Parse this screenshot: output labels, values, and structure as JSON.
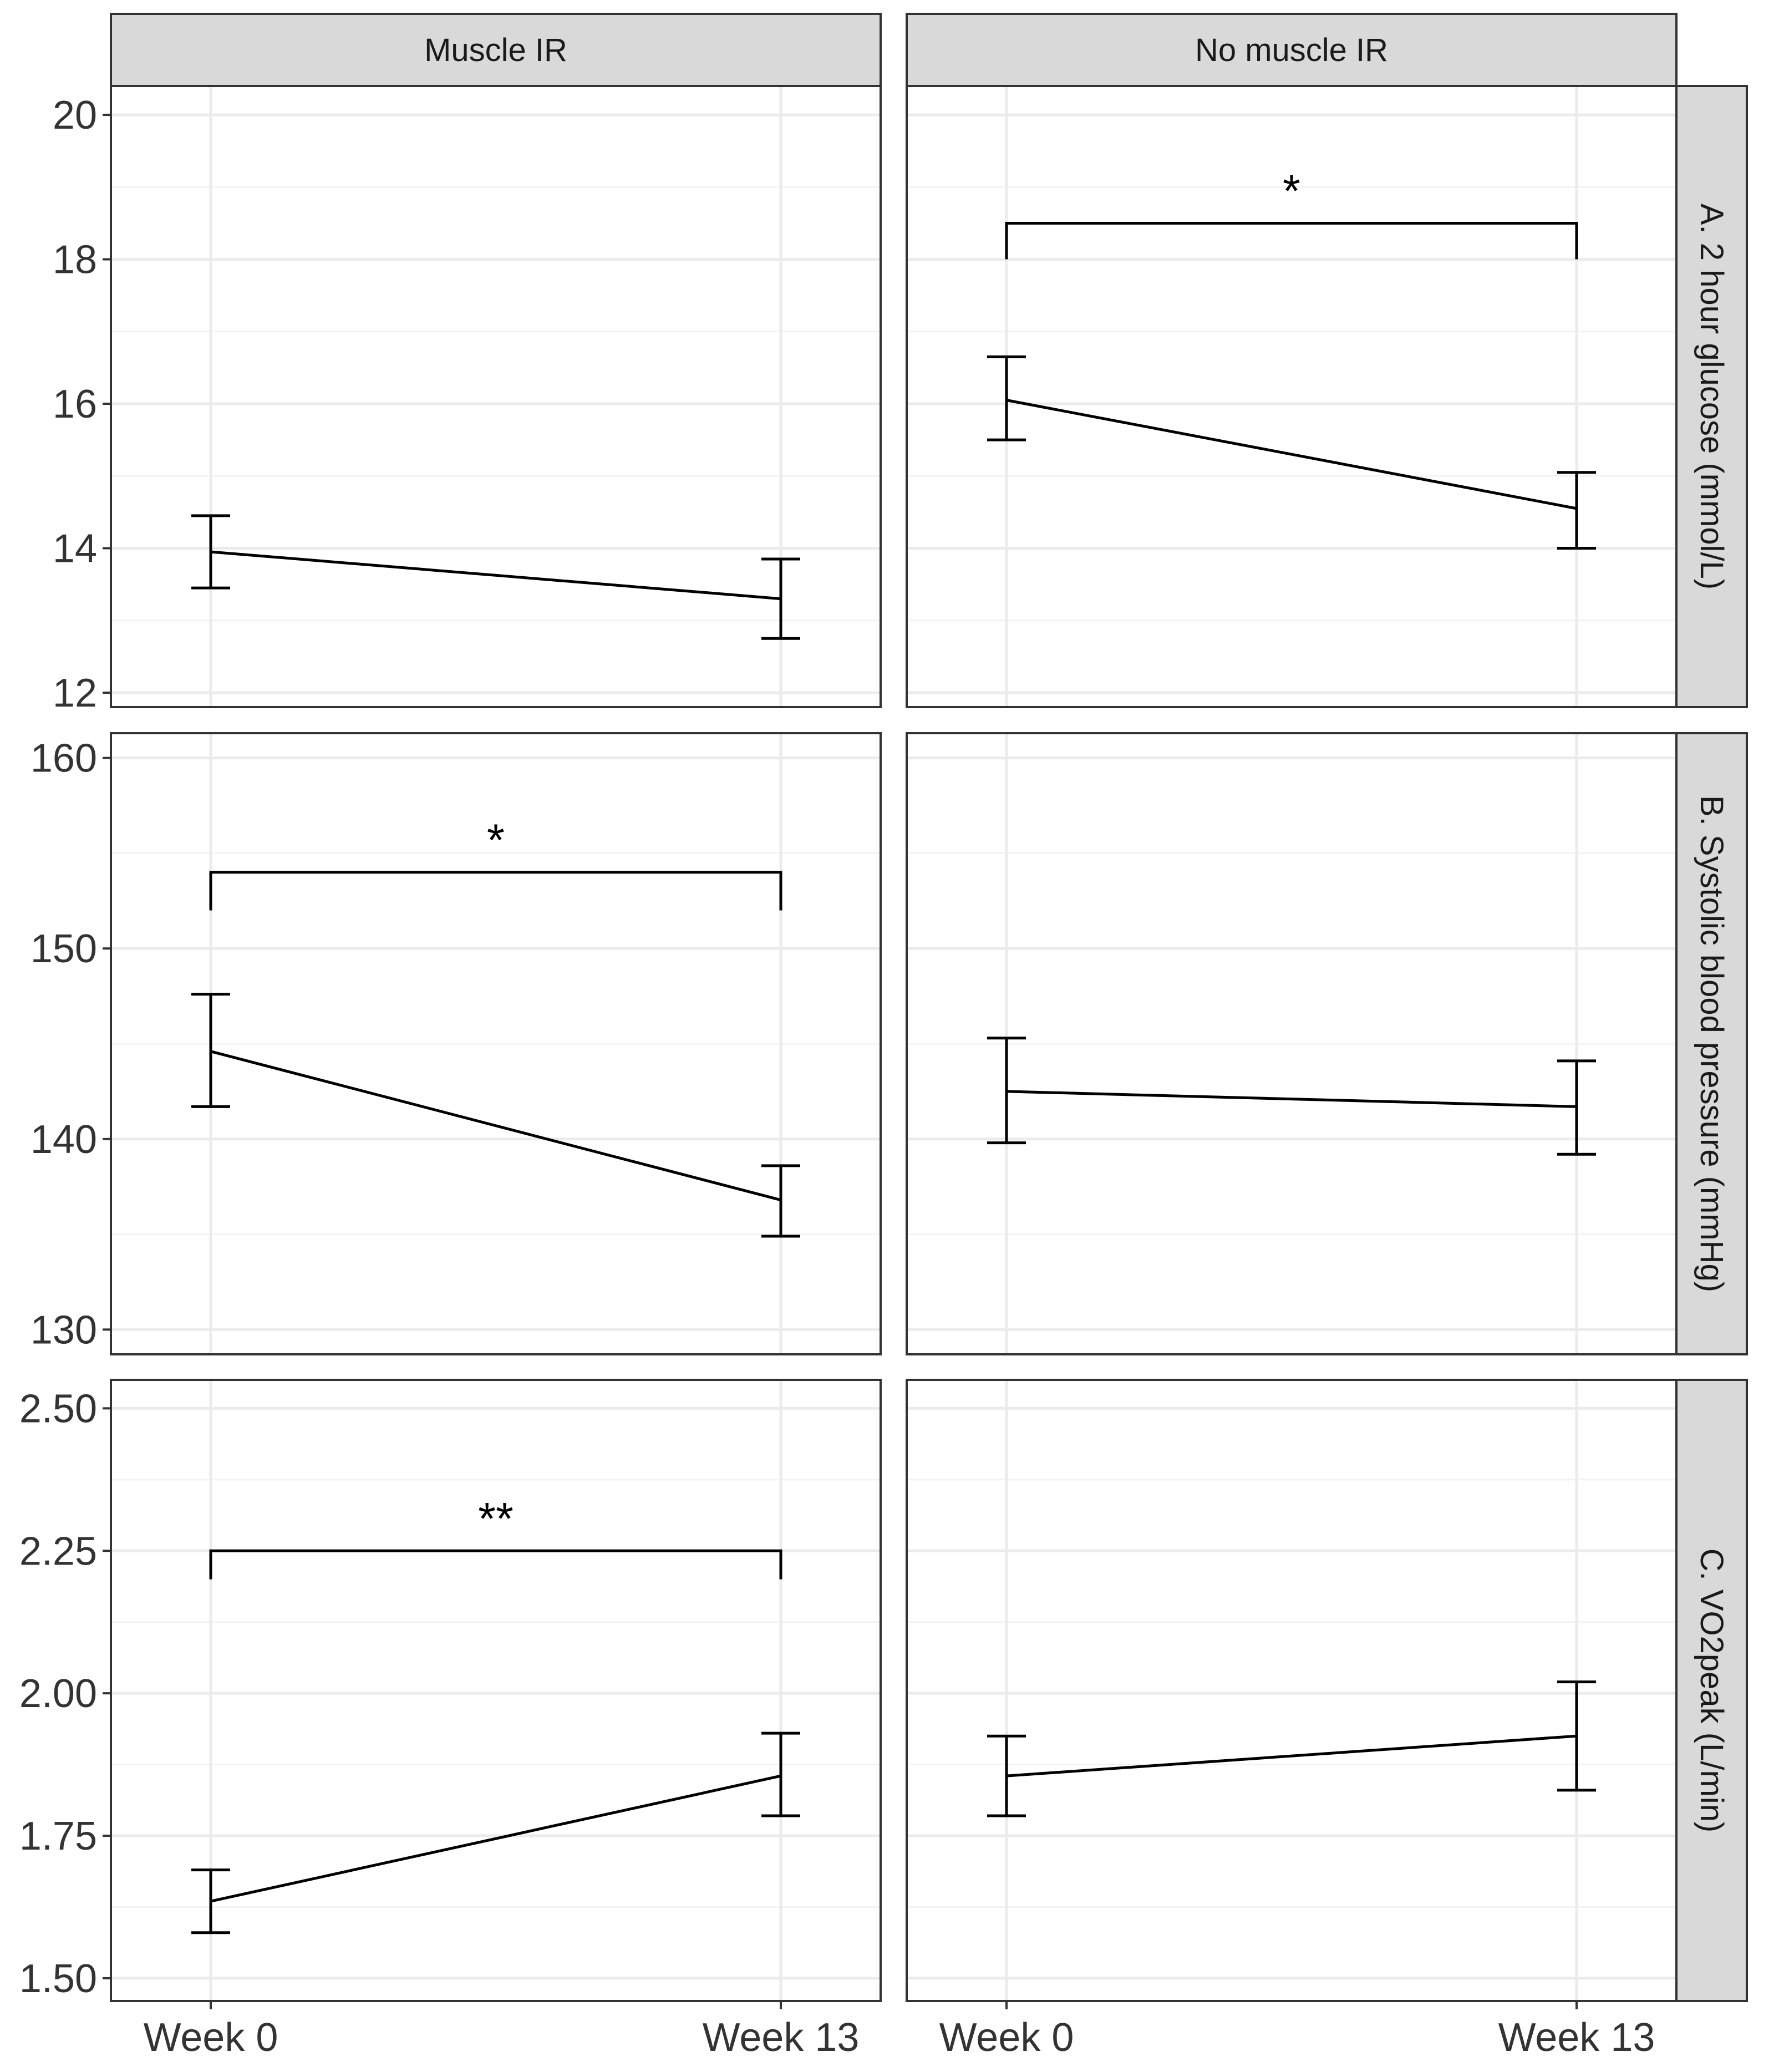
{
  "chart_data": {
    "type": "line",
    "columns": [
      "Muscle IR",
      "No muscle IR"
    ],
    "x_categories": [
      "Week 0",
      "Week 13"
    ],
    "rows": [
      {
        "strip_label": "A. 2 hour glucose (mmol/L)",
        "ylim": [
          11.8,
          20.4
        ],
        "y_ticks": [
          {
            "value": 12,
            "label": "12"
          },
          {
            "value": 14,
            "label": "14"
          },
          {
            "value": 16,
            "label": "16"
          },
          {
            "value": 18,
            "label": "18"
          },
          {
            "value": 20,
            "label": "20"
          }
        ],
        "panels": [
          {
            "means": [
              13.95,
              13.3
            ],
            "lower": [
              13.45,
              12.75
            ],
            "upper": [
              14.45,
              13.85
            ],
            "significance": null
          },
          {
            "means": [
              16.05,
              14.55
            ],
            "lower": [
              15.5,
              14.0
            ],
            "upper": [
              16.65,
              15.05
            ],
            "significance": {
              "label": "*",
              "y": 18.5,
              "tick_bottom": 18.0
            }
          }
        ]
      },
      {
        "strip_label": "B. Systolic blood pressure (mmHg)",
        "ylim": [
          128.7,
          161.3
        ],
        "y_ticks": [
          {
            "value": 130,
            "label": "130"
          },
          {
            "value": 140,
            "label": "140"
          },
          {
            "value": 150,
            "label": "150"
          },
          {
            "value": 160,
            "label": "160"
          }
        ],
        "panels": [
          {
            "means": [
              144.6,
              136.8
            ],
            "lower": [
              141.7,
              134.9
            ],
            "upper": [
              147.6,
              138.6
            ],
            "significance": {
              "label": "*",
              "y": 154.0,
              "tick_bottom": 152.0
            }
          },
          {
            "means": [
              142.5,
              141.7
            ],
            "lower": [
              139.8,
              139.2
            ],
            "upper": [
              145.3,
              144.1
            ],
            "significance": null
          }
        ]
      },
      {
        "strip_label": "C. VO2peak (L/min)",
        "ylim": [
          1.46,
          2.55
        ],
        "y_ticks": [
          {
            "value": 1.5,
            "label": "1.50"
          },
          {
            "value": 1.75,
            "label": "1.75"
          },
          {
            "value": 2.0,
            "label": "2.00"
          },
          {
            "value": 2.25,
            "label": "2.25"
          },
          {
            "value": 2.5,
            "label": "2.50"
          }
        ],
        "panels": [
          {
            "means": [
              1.635,
              1.855
            ],
            "lower": [
              1.58,
              1.785
            ],
            "upper": [
              1.69,
              1.93
            ],
            "significance": {
              "label": "**",
              "y": 2.25,
              "tick_bottom": 2.2
            }
          },
          {
            "means": [
              1.855,
              1.925
            ],
            "lower": [
              1.785,
              1.83
            ],
            "upper": [
              1.925,
              2.02
            ],
            "significance": null
          }
        ]
      }
    ]
  }
}
